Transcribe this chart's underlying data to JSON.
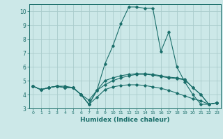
{
  "xlabel": "Humidex (Indice chaleur)",
  "bg_color": "#cce8e8",
  "grid_color": "#aacccc",
  "line_color": "#1a6e6a",
  "xlim": [
    -0.5,
    23.5
  ],
  "ylim": [
    3,
    10.5
  ],
  "yticks": [
    3,
    4,
    5,
    6,
    7,
    8,
    9,
    10
  ],
  "xticks": [
    0,
    1,
    2,
    3,
    4,
    5,
    6,
    7,
    8,
    9,
    10,
    11,
    12,
    13,
    14,
    15,
    16,
    17,
    18,
    19,
    20,
    21,
    22,
    23
  ],
  "lines": [
    {
      "x": [
        0,
        1,
        2,
        3,
        4,
        5,
        6,
        7,
        8,
        9,
        10,
        11,
        12,
        13,
        14,
        15,
        16,
        17,
        18,
        19,
        20,
        21,
        22,
        23
      ],
      "y": [
        4.6,
        4.35,
        4.5,
        4.6,
        4.5,
        4.5,
        4.0,
        3.3,
        3.8,
        4.35,
        4.55,
        4.65,
        4.7,
        4.7,
        4.65,
        4.55,
        4.45,
        4.3,
        4.1,
        3.9,
        3.7,
        3.55,
        3.3,
        3.4
      ]
    },
    {
      "x": [
        0,
        1,
        2,
        3,
        4,
        5,
        6,
        7,
        8,
        9,
        10,
        11,
        12,
        13,
        14,
        15,
        16,
        17,
        18,
        19,
        20,
        21,
        22,
        23
      ],
      "y": [
        4.6,
        4.35,
        4.5,
        4.6,
        4.5,
        4.5,
        4.0,
        3.3,
        4.3,
        6.2,
        7.5,
        9.1,
        10.3,
        10.3,
        10.2,
        10.2,
        7.1,
        8.5,
        6.0,
        4.9,
        4.0,
        3.3,
        3.3,
        3.4
      ]
    },
    {
      "x": [
        0,
        1,
        2,
        3,
        4,
        5,
        6,
        7,
        8,
        9,
        10,
        11,
        12,
        13,
        14,
        15,
        16,
        17,
        18,
        19,
        20,
        21,
        22,
        23
      ],
      "y": [
        4.6,
        4.35,
        4.5,
        4.6,
        4.6,
        4.5,
        4.0,
        3.3,
        4.3,
        5.0,
        5.2,
        5.35,
        5.45,
        5.5,
        5.5,
        5.45,
        5.35,
        5.25,
        5.2,
        5.1,
        4.5,
        4.0,
        3.3,
        3.4
      ]
    },
    {
      "x": [
        0,
        1,
        2,
        3,
        4,
        5,
        6,
        7,
        8,
        9,
        10,
        11,
        12,
        13,
        14,
        15,
        16,
        17,
        18,
        19,
        20,
        21,
        22,
        23
      ],
      "y": [
        4.6,
        4.35,
        4.5,
        4.6,
        4.5,
        4.5,
        4.0,
        3.6,
        4.3,
        4.7,
        5.0,
        5.2,
        5.35,
        5.45,
        5.45,
        5.4,
        5.3,
        5.2,
        5.15,
        5.05,
        4.5,
        4.0,
        3.3,
        3.4
      ]
    }
  ]
}
